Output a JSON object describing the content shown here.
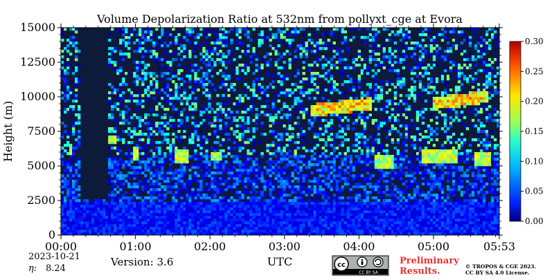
{
  "chart_data": {
    "type": "heatmap",
    "title": "Volume Depolarization Ratio at 532nm from pollyxt_cge at Evora",
    "xlabel": "UTC",
    "ylabel": "Height (m)",
    "x_range": [
      "00:00",
      "05:53"
    ],
    "x_ticks": [
      "00:00",
      "01:00",
      "02:00",
      "03:00",
      "04:00",
      "05:00",
      "05:53"
    ],
    "y_range": [
      0,
      15000
    ],
    "y_ticks": [
      "0",
      "2500",
      "5000",
      "7500",
      "10000",
      "12500",
      "15000"
    ],
    "colorbar": {
      "range": [
        0.0,
        0.3
      ],
      "ticks": [
        "0.00",
        "0.05",
        "0.10",
        "0.15",
        "0.20",
        "0.25",
        "0.30"
      ],
      "colormap": "jet"
    },
    "features": {
      "boundary_layer_top_m": 2500,
      "aerosol_layer_m": [
        5000,
        8000
      ],
      "cirrus_m": [
        8500,
        10500
      ]
    }
  },
  "footer": {
    "date": "2023-10-21",
    "eta_label": "η:",
    "eta_value": "8.24",
    "version": "Version: 3.6",
    "license_badge": "CC BY SA",
    "preliminary": "Preliminary",
    "results": "Results.",
    "copyright_1": "© TROPOS & CGE 2023.",
    "copyright_2": "CC BY SA 4.0 License."
  },
  "colors": {
    "low": "#0a3fbf",
    "high": "#d60000",
    "preliminary": "#e83030"
  }
}
